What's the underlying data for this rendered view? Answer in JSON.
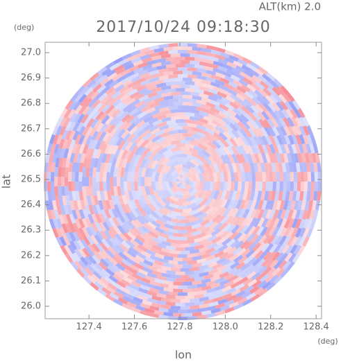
{
  "chart_data": {
    "type": "radar_ppi",
    "title": "2017/10/24 09:18:30",
    "annotation": "ALT(km) 2.0",
    "y_unit": "(deg)",
    "x_unit": "(deg)",
    "xlabel": "lon",
    "ylabel": "lat",
    "xlim": [
      127.207,
      128.424
    ],
    "ylim": [
      25.951,
      27.041
    ],
    "xticks": [
      {
        "value": 127.4,
        "label": "127.4"
      },
      {
        "value": 127.6,
        "label": "127.6"
      },
      {
        "value": 127.8,
        "label": "127.8"
      },
      {
        "value": 128.0,
        "label": "128.0"
      },
      {
        "value": 128.2,
        "label": "128.2"
      },
      {
        "value": 128.4,
        "label": "128.4"
      }
    ],
    "yticks": [
      {
        "value": 26.0,
        "label": "26.0"
      },
      {
        "value": 26.1,
        "label": "26.1"
      },
      {
        "value": 26.2,
        "label": "26.2"
      },
      {
        "value": 26.3,
        "label": "26.3"
      },
      {
        "value": 26.4,
        "label": "26.4"
      },
      {
        "value": 26.5,
        "label": "26.5"
      },
      {
        "value": 26.6,
        "label": "26.6"
      },
      {
        "value": 26.7,
        "label": "26.7"
      },
      {
        "value": 26.8,
        "label": "26.8"
      },
      {
        "value": 26.9,
        "label": "26.9"
      },
      {
        "value": 27.0,
        "label": "27.0"
      }
    ]
  }
}
